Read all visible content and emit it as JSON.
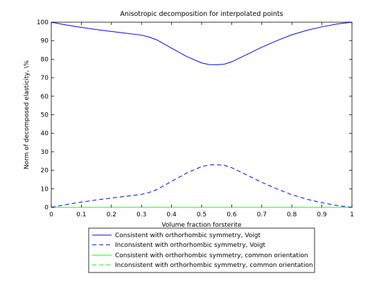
{
  "chart_data": {
    "type": "line",
    "title": "Anisotropic decomposition for interpolated points",
    "xlabel": "Volume fraction forsterite",
    "ylabel": "Norm of decomposed elasticity, \\%",
    "xlim": [
      0,
      1
    ],
    "ylim": [
      0,
      100
    ],
    "xticks": [
      "0",
      "0.1",
      "0.2",
      "0.3",
      "0.4",
      "0.5",
      "0.6",
      "0.7",
      "0.8",
      "0.9",
      "1"
    ],
    "yticks": [
      "0",
      "10",
      "20",
      "30",
      "40",
      "50",
      "60",
      "70",
      "80",
      "90",
      "100"
    ],
    "grid": false,
    "legend_position": "bottom-center",
    "x": [
      0,
      0.05,
      0.1,
      0.15,
      0.2,
      0.25,
      0.3,
      0.325,
      0.35,
      0.4,
      0.45,
      0.5,
      0.525,
      0.55,
      0.575,
      0.6,
      0.65,
      0.7,
      0.75,
      0.8,
      0.85,
      0.9,
      0.95,
      1.0
    ],
    "series": [
      {
        "name": "Consistent with orthorhombic symmetry, Voigt",
        "color": "#0000ff",
        "style": "solid",
        "values": [
          100,
          98.5,
          97.2,
          96,
          95,
          94,
          93,
          92,
          90.5,
          86,
          81.5,
          78,
          77.1,
          77,
          77.3,
          78.6,
          82.5,
          86.5,
          90,
          93.2,
          95.6,
          97.5,
          99,
          100
        ]
      },
      {
        "name": "Inconsistent with orthorhombic symmetry, Voigt",
        "color": "#0000ff",
        "style": "dashed",
        "values": [
          0,
          1.5,
          2.8,
          4,
          5,
          6,
          7,
          8,
          9.5,
          14,
          18.5,
          22,
          22.9,
          23,
          22.7,
          21.4,
          17.5,
          13.5,
          10,
          6.8,
          4.4,
          2.5,
          1,
          0
        ]
      },
      {
        "name": "Consistent with orthorhombic symmetry, common orientation",
        "color": "#00ff00",
        "style": "solid",
        "values": [
          0,
          0,
          0,
          0,
          0,
          0,
          0,
          0,
          0,
          0,
          0,
          0,
          0,
          0,
          0,
          0,
          0,
          0,
          0,
          0,
          0,
          0,
          0,
          0
        ]
      },
      {
        "name": "Inconsistent with orthorhombic symmetry, common orientation",
        "color": "#00ff00",
        "style": "dashed",
        "values": [
          0,
          0,
          0,
          0,
          0,
          0,
          0,
          0,
          0,
          0,
          0,
          0,
          0,
          0,
          0,
          0,
          0,
          0,
          0,
          0,
          0,
          0,
          0,
          0
        ]
      }
    ]
  }
}
